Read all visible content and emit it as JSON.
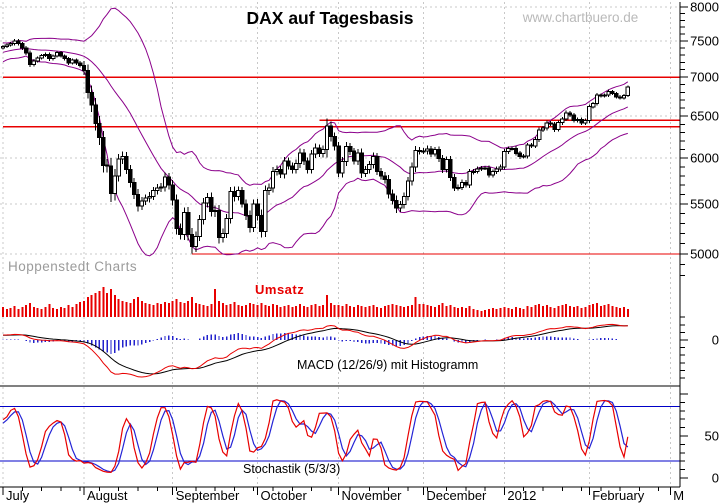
{
  "title": "DAX auf Tagesbasis",
  "watermark": "www.chartbuero.de",
  "branding": "Hoppenstedt Charts",
  "panels": {
    "volume_label": "Umsatz",
    "macd_label": "MACD (12/26/9) mit Histogramm",
    "stochastik_label": "Stochastik (5/3/3)"
  },
  "colors": {
    "background": "#ffffff",
    "axis": "#000000",
    "grid": "#c8c8c8",
    "band_purple": "#8b008b",
    "red": "#e80000",
    "candle_black": "#000000",
    "candle_white": "#ffffff",
    "histogram_blue": "#2222cc",
    "stoch_blue": "#2424d6",
    "ref_blue": "#0000c8",
    "muted_gray": "#9b9b9b",
    "watermark_gray": "#b9b9b9"
  },
  "chart_data": {
    "type": "candlestick",
    "title": "DAX auf Tagesbasis",
    "y_scale": "log",
    "price_gridlines": [
      8000,
      7500,
      7000,
      6500,
      6000,
      5500,
      5000
    ],
    "months": [
      {
        "label": "July",
        "day": 0
      },
      {
        "label": "August",
        "day": 21
      },
      {
        "label": "September",
        "day": 44
      },
      {
        "label": "October",
        "day": 66
      },
      {
        "label": "November",
        "day": 87
      },
      {
        "label": "December",
        "day": 109
      },
      {
        "label": "2012",
        "day": 130
      },
      {
        "label": "February",
        "day": 152
      },
      {
        "label": "M",
        "day": 173
      }
    ],
    "support_resistance": [
      {
        "price": 7000,
        "from_day": 0
      },
      {
        "price": 6450,
        "from_day": 82
      },
      {
        "price": 6370,
        "from_day": 0
      },
      {
        "price": 5000,
        "from_day": 49
      }
    ],
    "indicators": {
      "bollinger_period": 20,
      "bollinger_sigma": 2,
      "macd_params": [
        12,
        26,
        9
      ],
      "macd_zero_label": "0",
      "stochastik_params": [
        5,
        3,
        3
      ],
      "stoch_upper_ref": 85,
      "stoch_lower_ref": 20,
      "stoch_labels": [
        {
          "value": 50,
          "label": "50"
        },
        {
          "value": 0,
          "label": "0"
        }
      ]
    },
    "pre_close": [
      7160,
      7120,
      7080,
      7050,
      7090,
      7130,
      7160,
      7200,
      7240,
      7270,
      7230,
      7190,
      7150,
      7110,
      7080,
      7120,
      7180,
      7230,
      7280,
      7320,
      7290,
      7260,
      7300,
      7340,
      7380,
      7350,
      7310,
      7350,
      7390,
      7420,
      7390,
      7360,
      7400,
      7420,
      7400
    ],
    "close": [
      7420,
      7445,
      7465,
      7500,
      7460,
      7400,
      7330,
      7170,
      7220,
      7260,
      7295,
      7310,
      7250,
      7290,
      7335,
      7290,
      7250,
      7190,
      7230,
      7190,
      7160,
      7090,
      6800,
      6640,
      6410,
      6240,
      5920,
      5910,
      5610,
      5800,
      5990,
      6020,
      5870,
      5730,
      5600,
      5480,
      5530,
      5560,
      5580,
      5640,
      5670,
      5680,
      5790,
      5700,
      5540,
      5250,
      5190,
      5410,
      5190,
      5070,
      5170,
      5340,
      5510,
      5570,
      5420,
      5430,
      5160,
      5200,
      5350,
      5630,
      5580,
      5640,
      5500,
      5380,
      5260,
      5500,
      5380,
      5220,
      5640,
      5670,
      5850,
      5870,
      5820,
      5970,
      5910,
      5870,
      5940,
      6060,
      5970,
      5870,
      6050,
      6120,
      6055,
      6100,
      6380,
      6250,
      6141,
      5834,
      5965,
      6133,
      6080,
      5966,
      6060,
      5830,
      5870,
      5930,
      6020,
      5850,
      5800,
      5760,
      5606,
      5537,
      5457,
      5492,
      5580,
      5745,
      5900,
      6088,
      6080,
      6081,
      6106,
      6050,
      6100,
      5994,
      5874,
      5986,
      5785,
      5670,
      5675,
      5730,
      5701,
      5847,
      5852,
      5878,
      5890,
      5889,
      5810,
      5849,
      5880,
      5898,
      6075,
      6111,
      6112,
      6057,
      6017,
      6023,
      6152,
      6143,
      6220,
      6332,
      6354,
      6416,
      6404,
      6334,
      6419,
      6466,
      6539,
      6512,
      6444,
      6459,
      6417,
      6444,
      6617,
      6656,
      6766,
      6754,
      6764,
      6812,
      6788,
      6742,
      6728,
      6758,
      6870
    ],
    "wick": [
      25,
      20,
      22,
      28,
      24,
      26,
      30,
      35,
      25,
      22,
      20,
      24,
      28,
      22,
      20,
      25,
      22,
      26,
      22,
      24,
      28,
      60,
      80,
      90,
      85,
      90,
      80,
      70,
      90,
      75,
      60,
      55,
      50,
      55,
      50,
      60,
      45,
      40,
      45,
      40,
      40,
      45,
      50,
      45,
      55,
      60,
      50,
      55,
      60,
      65,
      50,
      45,
      50,
      45,
      50,
      55,
      60,
      50,
      45,
      50,
      55,
      45,
      40,
      45,
      50,
      45,
      50,
      60,
      55,
      45,
      50,
      45,
      40,
      45,
      40,
      40,
      45,
      50,
      45,
      40,
      45,
      50,
      40,
      45,
      90,
      55,
      50,
      45,
      50,
      55,
      45,
      40,
      45,
      50,
      40,
      40,
      45,
      40,
      40,
      45,
      50,
      45,
      50,
      40,
      40,
      45,
      50,
      55,
      40,
      35,
      40,
      35,
      30,
      35,
      40,
      35,
      40,
      35,
      30,
      30,
      28,
      32,
      28,
      25,
      22,
      24,
      26,
      24,
      25,
      28,
      28,
      26,
      24,
      26,
      24,
      22,
      26,
      24,
      28,
      30,
      26,
      28,
      24,
      26,
      24,
      26,
      28,
      26,
      24,
      22,
      24,
      26,
      30,
      24,
      26,
      22,
      20,
      24,
      22,
      20,
      22,
      20,
      18
    ],
    "volume": [
      10,
      8,
      9,
      11,
      8,
      10,
      12,
      14,
      10,
      9,
      8,
      10,
      13,
      9,
      8,
      10,
      9,
      12,
      10,
      13,
      15,
      16,
      20,
      22,
      24,
      26,
      30,
      24,
      28,
      22,
      18,
      16,
      15,
      14,
      18,
      20,
      16,
      14,
      13,
      12,
      14,
      13,
      15,
      14,
      16,
      18,
      15,
      14,
      16,
      20,
      14,
      13,
      12,
      11,
      13,
      28,
      16,
      14,
      12,
      13,
      15,
      12,
      11,
      12,
      14,
      13,
      12,
      14,
      12,
      11,
      13,
      12,
      10,
      11,
      12,
      10,
      11,
      13,
      11,
      10,
      12,
      13,
      11,
      12,
      22,
      14,
      12,
      12,
      11,
      13,
      11,
      10,
      12,
      11,
      10,
      11,
      12,
      10,
      9,
      11,
      12,
      13,
      12,
      11,
      10,
      11,
      12,
      20,
      13,
      13,
      12,
      11,
      10,
      12,
      14,
      11,
      12,
      10,
      9,
      10,
      9,
      11,
      8,
      7,
      6,
      7,
      8,
      9,
      8,
      9,
      10,
      9,
      8,
      10,
      9,
      8,
      11,
      10,
      12,
      13,
      11,
      12,
      10,
      9,
      11,
      12,
      13,
      11,
      10,
      11,
      9,
      10,
      12,
      13,
      14,
      11,
      12,
      13,
      11,
      10,
      9,
      10,
      8
    ]
  }
}
